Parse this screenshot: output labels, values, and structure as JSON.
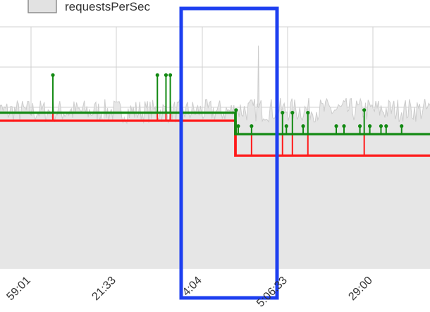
{
  "chart_data": {
    "type": "line",
    "title": "",
    "xlabel": "",
    "ylabel": "",
    "x_tick_labels": [
      "59:01",
      "21:33",
      "4:04",
      "5:06:33",
      "29:00"
    ],
    "legend": {
      "entries": [
        {
          "label": "requestsPerSec",
          "color": "#e2e2e2"
        }
      ],
      "placement": "top-left"
    },
    "grid": true,
    "colors": {
      "area_fill": "#e6e6e6",
      "noise_line": "#cccccc",
      "green_line": "#138a13",
      "red_line": "#ff1a1a",
      "selection_box": "#1d3ff0",
      "grid": "#d0d0d0"
    },
    "series": [
      {
        "name": "requestsPerSec",
        "kind": "area",
        "segments": [
          {
            "x_start": -0.02,
            "x_end": 0.55,
            "base": 0.585
          },
          {
            "x_start": 0.55,
            "x_end": 1.02,
            "base": 0.59
          }
        ],
        "spike": {
          "x": 0.601,
          "y": 0.83
        }
      },
      {
        "kind": "step-line",
        "color": "green",
        "steps": [
          [
            0.0,
            0.58
          ],
          [
            0.547,
            0.58
          ],
          [
            0.547,
            0.5
          ],
          [
            1.0,
            0.5
          ]
        ],
        "spikes": [
          {
            "x": 0.123,
            "y": 0.72
          },
          {
            "x": 0.366,
            "y": 0.72
          },
          {
            "x": 0.386,
            "y": 0.72
          },
          {
            "x": 0.396,
            "y": 0.72
          },
          {
            "x": 0.549,
            "y": 0.59
          },
          {
            "x": 0.554,
            "y": 0.53
          },
          {
            "x": 0.585,
            "y": 0.53
          },
          {
            "x": 0.657,
            "y": 0.58
          },
          {
            "x": 0.666,
            "y": 0.53
          },
          {
            "x": 0.68,
            "y": 0.58
          },
          {
            "x": 0.705,
            "y": 0.53
          },
          {
            "x": 0.716,
            "y": 0.58
          },
          {
            "x": 0.782,
            "y": 0.53
          },
          {
            "x": 0.8,
            "y": 0.53
          },
          {
            "x": 0.837,
            "y": 0.53
          },
          {
            "x": 0.847,
            "y": 0.59
          },
          {
            "x": 0.86,
            "y": 0.53
          },
          {
            "x": 0.886,
            "y": 0.53
          },
          {
            "x": 0.898,
            "y": 0.53
          },
          {
            "x": 0.934,
            "y": 0.53
          }
        ]
      },
      {
        "kind": "step-line",
        "color": "red",
        "steps": [
          [
            0.0,
            0.55
          ],
          [
            0.547,
            0.55
          ],
          [
            0.547,
            0.42
          ],
          [
            1.0,
            0.42
          ]
        ],
        "spikes": [
          {
            "x": 0.123,
            "y": 0.58
          },
          {
            "x": 0.366,
            "y": 0.58
          },
          {
            "x": 0.386,
            "y": 0.58
          },
          {
            "x": 0.396,
            "y": 0.58
          },
          {
            "x": 0.549,
            "y": 0.55
          },
          {
            "x": 0.585,
            "y": 0.5
          },
          {
            "x": 0.657,
            "y": 0.5
          },
          {
            "x": 0.68,
            "y": 0.5
          },
          {
            "x": 0.716,
            "y": 0.5
          },
          {
            "x": 0.847,
            "y": 0.5
          }
        ]
      }
    ]
  }
}
